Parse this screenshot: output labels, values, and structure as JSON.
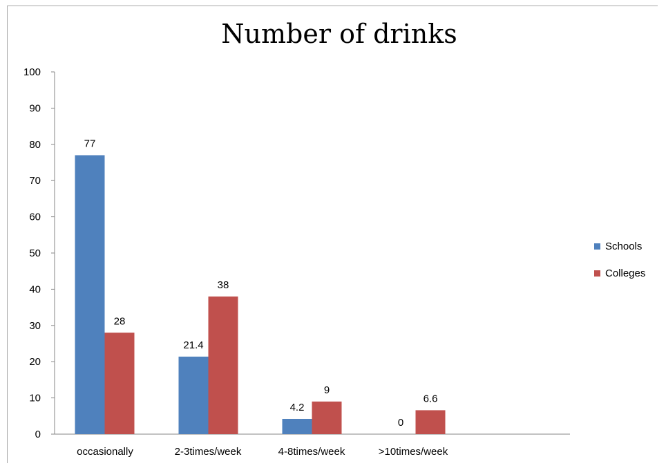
{
  "chart_data": {
    "type": "bar",
    "title": "Number of drinks",
    "xlabel": "",
    "ylabel": "",
    "categories": [
      "occasionally",
      "2-3times/week",
      "4-8times/week",
      ">10times/week"
    ],
    "series": [
      {
        "name": "Schools",
        "values": [
          77,
          21.4,
          4.2,
          0
        ],
        "labels": [
          "77",
          "21.4",
          "4.2",
          "0"
        ],
        "color": "#4f81bd"
      },
      {
        "name": "Colleges",
        "values": [
          28,
          38,
          9,
          6.6
        ],
        "labels": [
          "28",
          "38",
          "9",
          "6.6"
        ],
        "color": "#c0504d"
      }
    ],
    "ylim": [
      0,
      100
    ],
    "yticks": [
      0,
      10,
      20,
      30,
      40,
      50,
      60,
      70,
      80,
      90,
      100
    ],
    "grid": false,
    "legend_position": "right"
  }
}
